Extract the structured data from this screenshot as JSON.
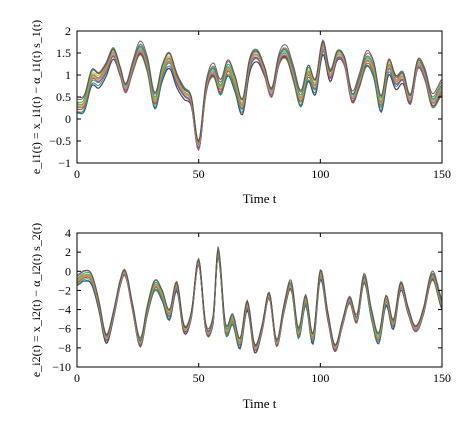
{
  "chart_data": [
    {
      "type": "line",
      "title": "",
      "xlabel": "Time t",
      "ylabel": "e_i1(t) = x_i1(t) − α_i1(t) s_1(t)",
      "xlim": [
        0,
        150
      ],
      "ylim": [
        -1,
        2
      ],
      "xticks": [
        0,
        50,
        100,
        150
      ],
      "yticks": [
        -1,
        -0.5,
        0,
        0.5,
        1,
        1.5,
        2
      ],
      "xtick_labels": [
        "0",
        "50",
        "100",
        "150"
      ],
      "ytick_labels": [
        "−1",
        "−0.5",
        "0",
        "0.5",
        "1",
        "1.5",
        "2"
      ],
      "grid": false,
      "legend": "none",
      "series_colors": [
        "#333333",
        "#1f77b4",
        "#2ca02c",
        "#d62728",
        "#9467bd",
        "#8c564b",
        "#e377c2",
        "#bcbd22",
        "#17becf",
        "#ff7f0e",
        "#7f7f7f",
        "#c8b400",
        "#00a0a0",
        "#a05050",
        "#555555"
      ],
      "band_spread": 0.2,
      "x": [
        0,
        3,
        6,
        9,
        12,
        15,
        18,
        20,
        23,
        26,
        29,
        32,
        35,
        38,
        41,
        44,
        47,
        50,
        53,
        56,
        59,
        62,
        65,
        68,
        71,
        74,
        77,
        80,
        83,
        86,
        89,
        92,
        95,
        98,
        101,
        104,
        107,
        110,
        113,
        116,
        119,
        122,
        125,
        128,
        131,
        134,
        137,
        140,
        143,
        146,
        150
      ],
      "center": [
        0.3,
        0.35,
        0.95,
        0.9,
        1.15,
        1.5,
        1.05,
        0.7,
        1.2,
        1.6,
        1.2,
        0.4,
        1.05,
        1.35,
        0.9,
        0.6,
        0.4,
        -0.6,
        0.7,
        1.1,
        0.7,
        1.15,
        0.8,
        0.3,
        1.25,
        1.45,
        1.1,
        0.6,
        1.35,
        1.5,
        1.0,
        0.45,
        1.05,
        0.75,
        1.65,
        1.0,
        1.45,
        1.3,
        0.5,
        0.85,
        1.35,
        1.1,
        0.35,
        1.2,
        0.85,
        0.95,
        0.45,
        1.25,
        1.0,
        0.4,
        0.7
      ]
    },
    {
      "type": "line",
      "title": "",
      "xlabel": "Time t",
      "ylabel": "e_i2(t) = x_i2(t) − α_i2(t) s_2(t)",
      "xlim": [
        0,
        150
      ],
      "ylim": [
        -10,
        4
      ],
      "xticks": [
        0,
        50,
        100,
        150
      ],
      "yticks": [
        -10,
        -8,
        -6,
        -4,
        -2,
        0,
        2,
        4
      ],
      "xtick_labels": [
        "0",
        "50",
        "100",
        "150"
      ],
      "ytick_labels": [
        "−10",
        "−8",
        "−6",
        "−4",
        "−2",
        "0",
        "2",
        "4"
      ],
      "grid": false,
      "legend": "none",
      "series_colors": [
        "#333333",
        "#1f77b4",
        "#2ca02c",
        "#d62728",
        "#9467bd",
        "#8c564b",
        "#e377c2",
        "#bcbd22",
        "#17becf",
        "#ff7f0e",
        "#7f7f7f",
        "#c8b400",
        "#00a0a0",
        "#a05050",
        "#555555"
      ],
      "band_spread": 0.6,
      "x": [
        0,
        3,
        6,
        9,
        12,
        15,
        18,
        20,
        23,
        26,
        29,
        32,
        35,
        38,
        41,
        44,
        47,
        50,
        53,
        56,
        58,
        61,
        64,
        67,
        70,
        73,
        76,
        79,
        82,
        85,
        88,
        91,
        94,
        97,
        100,
        103,
        106,
        109,
        112,
        115,
        118,
        121,
        124,
        127,
        130,
        133,
        136,
        139,
        142,
        146,
        150
      ],
      "center": [
        -1.0,
        -0.5,
        -0.8,
        -3.5,
        -7.0,
        -4.5,
        -1.0,
        -0.3,
        -4.0,
        -7.5,
        -4.0,
        -1.5,
        -2.5,
        -4.5,
        -1.5,
        -6.0,
        -4.5,
        1.0,
        -6.0,
        -5.0,
        2.0,
        -6.0,
        -5.0,
        -7.5,
        -3.5,
        -8.0,
        -6.0,
        -2.5,
        -7.5,
        -4.0,
        -1.5,
        -6.5,
        -3.0,
        -7.0,
        -0.3,
        -4.5,
        -8.0,
        -5.5,
        -3.0,
        -5.0,
        -0.8,
        -4.5,
        -7.0,
        -3.0,
        -5.5,
        -1.5,
        -4.0,
        -6.0,
        -4.5,
        -0.5,
        -3.5
      ]
    }
  ]
}
